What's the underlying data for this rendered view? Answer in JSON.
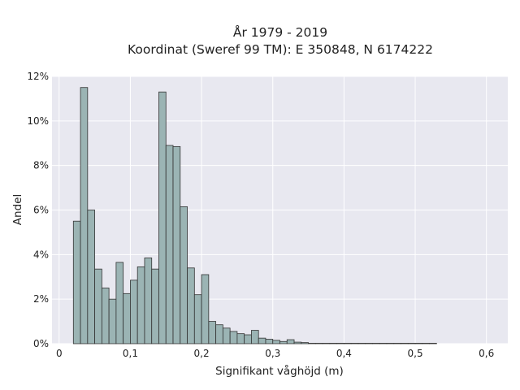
{
  "chart_data": {
    "type": "bar",
    "title": "År 1979 - 2019",
    "subtitle": "Koordinat (Sweref 99 TM): E 350848, N 6174222",
    "xlabel": "Signifikant våghöjd (m)",
    "ylabel": "Andel",
    "xlim": [
      -0.01,
      0.63
    ],
    "ylim": [
      0,
      12
    ],
    "grid": true,
    "background": "#e8e8f0",
    "bar_color": "#9bb4b4",
    "edge_color": "#333333",
    "x_ticks": [
      0,
      0.1,
      0.2,
      0.3,
      0.4,
      0.5,
      0.6
    ],
    "x_tick_labels": [
      "0",
      "0,1",
      "0,2",
      "0,3",
      "0,4",
      "0,5",
      "0,6"
    ],
    "y_ticks": [
      0,
      2,
      4,
      6,
      8,
      10,
      12
    ],
    "y_tick_labels": [
      "0%",
      "2%",
      "4%",
      "6%",
      "8%",
      "10%",
      "12%"
    ],
    "bin_start": 0.02,
    "bin_width": 0.01,
    "values": [
      5.5,
      11.5,
      6.0,
      3.35,
      2.5,
      2.0,
      3.65,
      2.25,
      2.85,
      3.45,
      3.85,
      3.35,
      11.3,
      8.9,
      8.85,
      6.15,
      3.4,
      2.2,
      3.1,
      1.0,
      0.85,
      0.7,
      0.55,
      0.45,
      0.4,
      0.6,
      0.25,
      0.2,
      0.15,
      0.1,
      0.18,
      0.07,
      0.05,
      0.02,
      0.02,
      0.02,
      0.02,
      0.02,
      0.02,
      0.02,
      0.02,
      0.02,
      0.02,
      0.02,
      0.02,
      0.02,
      0.02,
      0.02,
      0.02,
      0.02,
      0.02
    ]
  }
}
